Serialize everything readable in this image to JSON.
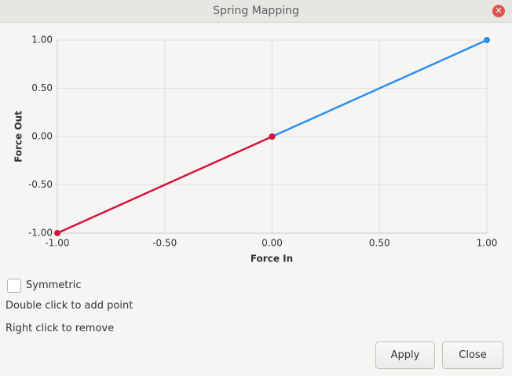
{
  "window": {
    "title": "Spring Mapping"
  },
  "chart_data": {
    "type": "line",
    "xlabel": "Force In",
    "ylabel": "Force Out",
    "xlim": [
      -1,
      1
    ],
    "ylim": [
      -1,
      1
    ],
    "xticks": [
      {
        "value": -1,
        "label": "-1.00"
      },
      {
        "value": -0.5,
        "label": "-0.50"
      },
      {
        "value": 0,
        "label": "0.00"
      },
      {
        "value": 0.5,
        "label": "0.50"
      },
      {
        "value": 1,
        "label": "1.00"
      }
    ],
    "yticks": [
      {
        "value": -1,
        "label": "-1.00"
      },
      {
        "value": -0.5,
        "label": "-0.50"
      },
      {
        "value": 0,
        "label": "0.00"
      },
      {
        "value": 0.5,
        "label": "0.50"
      },
      {
        "value": 1,
        "label": "1.00"
      }
    ],
    "grid": true,
    "series": [
      {
        "color": "#2b8ff0",
        "x": [
          0,
          1
        ],
        "values": [
          0,
          1
        ]
      },
      {
        "color": "#d4143c",
        "x": [
          -1,
          0
        ],
        "values": [
          -1,
          0
        ]
      }
    ]
  },
  "options": {
    "symmetric": {
      "label": "Symmetric",
      "checked": false
    }
  },
  "hints": [
    "Double click to add point",
    "Right click to remove"
  ],
  "buttons": [
    "Apply",
    "Close"
  ]
}
